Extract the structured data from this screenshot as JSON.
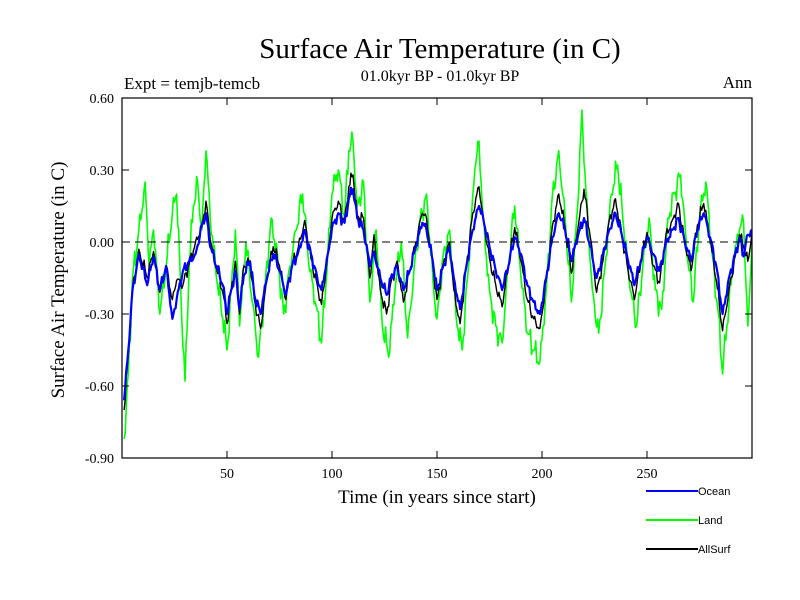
{
  "chart_data": {
    "type": "line",
    "title": "Surface Air Temperature (in C)",
    "subtitle": "01.0kyr BP - 01.0kyr BP",
    "left_label": "Expt = temjb-temcb",
    "right_label": "Ann",
    "xlabel": "Time (in years since start)",
    "ylabel": "Surface Air Temperature (in C)",
    "xlim": [
      0,
      300
    ],
    "ylim": [
      -0.9,
      0.6
    ],
    "x_ticks": [
      50,
      100,
      150,
      200,
      250
    ],
    "y_ticks": [
      -0.9,
      -0.6,
      -0.3,
      0.0,
      0.3,
      0.6
    ],
    "y_tick_labels": [
      "-0.90",
      "-0.60",
      "-0.30",
      "0.00",
      "0.30",
      "0.60"
    ],
    "zero_line": true,
    "legend_position": "below-right",
    "series": [
      {
        "name": "Ocean",
        "color": "#0000ff"
      },
      {
        "name": "Land",
        "color": "#00ff00"
      },
      {
        "name": "AllSurf",
        "color": "#000000"
      }
    ],
    "keypoints": {
      "Ocean": [
        [
          1,
          -0.66
        ],
        [
          3,
          -0.45
        ],
        [
          5,
          -0.2
        ],
        [
          8,
          -0.05
        ],
        [
          12,
          -0.18
        ],
        [
          15,
          -0.06
        ],
        [
          18,
          -0.2
        ],
        [
          21,
          -0.1
        ],
        [
          24,
          -0.32
        ],
        [
          26,
          -0.24
        ],
        [
          29,
          -0.12
        ],
        [
          32,
          -0.08
        ],
        [
          35,
          -0.05
        ],
        [
          38,
          0.07
        ],
        [
          40,
          0.12
        ],
        [
          42,
          -0.02
        ],
        [
          45,
          -0.1
        ],
        [
          48,
          -0.18
        ],
        [
          50,
          -0.3
        ],
        [
          52,
          -0.2
        ],
        [
          54,
          -0.12
        ],
        [
          56,
          -0.28
        ],
        [
          58,
          -0.14
        ],
        [
          61,
          -0.08
        ],
        [
          63,
          -0.22
        ],
        [
          66,
          -0.3
        ],
        [
          69,
          -0.15
        ],
        [
          72,
          -0.05
        ],
        [
          75,
          -0.12
        ],
        [
          78,
          -0.22
        ],
        [
          81,
          -0.1
        ],
        [
          84,
          -0.04
        ],
        [
          87,
          0.05
        ],
        [
          90,
          -0.05
        ],
        [
          93,
          -0.15
        ],
        [
          95,
          -0.2
        ],
        [
          98,
          -0.05
        ],
        [
          100,
          0.06
        ],
        [
          103,
          0.12
        ],
        [
          106,
          0.08
        ],
        [
          108,
          0.18
        ],
        [
          110,
          0.22
        ],
        [
          112,
          0.1
        ],
        [
          115,
          0.05
        ],
        [
          118,
          -0.1
        ],
        [
          120,
          -0.04
        ],
        [
          123,
          -0.15
        ],
        [
          126,
          -0.22
        ],
        [
          128,
          -0.15
        ],
        [
          131,
          -0.1
        ],
        [
          134,
          -0.2
        ],
        [
          137,
          -0.12
        ],
        [
          140,
          -0.02
        ],
        [
          143,
          0.08
        ],
        [
          145,
          0.05
        ],
        [
          148,
          -0.08
        ],
        [
          150,
          -0.2
        ],
        [
          153,
          -0.1
        ],
        [
          156,
          -0.02
        ],
        [
          158,
          -0.15
        ],
        [
          161,
          -0.28
        ],
        [
          164,
          -0.1
        ],
        [
          167,
          0.05
        ],
        [
          170,
          0.15
        ],
        [
          172,
          0.1
        ],
        [
          175,
          -0.02
        ],
        [
          178,
          -0.12
        ],
        [
          181,
          -0.2
        ],
        [
          184,
          -0.1
        ],
        [
          187,
          0.02
        ],
        [
          190,
          -0.05
        ],
        [
          193,
          -0.18
        ],
        [
          196,
          -0.25
        ],
        [
          199,
          -0.3
        ],
        [
          202,
          -0.15
        ],
        [
          205,
          0.02
        ],
        [
          208,
          0.12
        ],
        [
          211,
          0.05
        ],
        [
          214,
          -0.08
        ],
        [
          217,
          0.02
        ],
        [
          220,
          0.1
        ],
        [
          223,
          -0.02
        ],
        [
          226,
          -0.15
        ],
        [
          229,
          -0.05
        ],
        [
          232,
          0.05
        ],
        [
          235,
          0.12
        ],
        [
          238,
          0.03
        ],
        [
          241,
          -0.08
        ],
        [
          244,
          -0.18
        ],
        [
          247,
          -0.08
        ],
        [
          250,
          0.02
        ],
        [
          253,
          -0.05
        ],
        [
          256,
          -0.12
        ],
        [
          259,
          0.0
        ],
        [
          262,
          0.05
        ],
        [
          265,
          0.1
        ],
        [
          268,
          0.0
        ],
        [
          271,
          -0.08
        ],
        [
          274,
          0.05
        ],
        [
          277,
          0.12
        ],
        [
          280,
          0.02
        ],
        [
          283,
          -0.1
        ],
        [
          286,
          -0.3
        ],
        [
          289,
          -0.15
        ],
        [
          292,
          -0.05
        ],
        [
          294,
          0.02
        ],
        [
          296,
          -0.06
        ],
        [
          298,
          0.03
        ],
        [
          300,
          0.05
        ]
      ],
      "Land": [
        [
          1,
          -0.82
        ],
        [
          3,
          -0.55
        ],
        [
          5,
          -0.15
        ],
        [
          8,
          0.05
        ],
        [
          11,
          0.25
        ],
        [
          13,
          -0.1
        ],
        [
          15,
          0.05
        ],
        [
          18,
          -0.3
        ],
        [
          21,
          -0.1
        ],
        [
          24,
          0.12
        ],
        [
          26,
          0.2
        ],
        [
          28,
          -0.2
        ],
        [
          30,
          -0.58
        ],
        [
          32,
          -0.1
        ],
        [
          34,
          0.15
        ],
        [
          36,
          0.25
        ],
        [
          38,
          0.05
        ],
        [
          40,
          0.38
        ],
        [
          42,
          0.1
        ],
        [
          45,
          -0.15
        ],
        [
          48,
          -0.32
        ],
        [
          50,
          -0.45
        ],
        [
          52,
          -0.2
        ],
        [
          54,
          0.05
        ],
        [
          56,
          -0.35
        ],
        [
          59,
          0.0
        ],
        [
          62,
          -0.25
        ],
        [
          65,
          -0.48
        ],
        [
          68,
          -0.2
        ],
        [
          71,
          0.1
        ],
        [
          74,
          -0.05
        ],
        [
          77,
          -0.3
        ],
        [
          80,
          -0.1
        ],
        [
          83,
          0.05
        ],
        [
          86,
          0.2
        ],
        [
          89,
          -0.1
        ],
        [
          92,
          -0.25
        ],
        [
          95,
          -0.42
        ],
        [
          98,
          -0.05
        ],
        [
          100,
          0.2
        ],
        [
          103,
          0.3
        ],
        [
          106,
          0.1
        ],
        [
          108,
          0.38
        ],
        [
          110,
          0.42
        ],
        [
          112,
          0.15
        ],
        [
          115,
          0.25
        ],
        [
          118,
          -0.25
        ],
        [
          121,
          0.05
        ],
        [
          124,
          -0.35
        ],
        [
          127,
          -0.48
        ],
        [
          130,
          -0.2
        ],
        [
          133,
          0.0
        ],
        [
          136,
          -0.4
        ],
        [
          139,
          -0.12
        ],
        [
          142,
          0.1
        ],
        [
          145,
          0.2
        ],
        [
          148,
          -0.15
        ],
        [
          150,
          -0.32
        ],
        [
          153,
          -0.05
        ],
        [
          156,
          0.05
        ],
        [
          159,
          -0.3
        ],
        [
          162,
          -0.45
        ],
        [
          165,
          -0.1
        ],
        [
          168,
          0.3
        ],
        [
          170,
          0.42
        ],
        [
          172,
          0.1
        ],
        [
          175,
          -0.2
        ],
        [
          178,
          -0.35
        ],
        [
          181,
          -0.42
        ],
        [
          184,
          -0.1
        ],
        [
          187,
          0.15
        ],
        [
          190,
          -0.15
        ],
        [
          193,
          -0.38
        ],
        [
          196,
          -0.45
        ],
        [
          199,
          -0.5
        ],
        [
          202,
          -0.2
        ],
        [
          205,
          0.2
        ],
        [
          208,
          0.38
        ],
        [
          211,
          0.1
        ],
        [
          214,
          -0.25
        ],
        [
          217,
          0.15
        ],
        [
          219,
          0.55
        ],
        [
          221,
          0.2
        ],
        [
          224,
          -0.2
        ],
        [
          227,
          -0.38
        ],
        [
          230,
          -0.1
        ],
        [
          233,
          0.2
        ],
        [
          236,
          0.32
        ],
        [
          239,
          0.05
        ],
        [
          242,
          -0.2
        ],
        [
          245,
          -0.35
        ],
        [
          248,
          -0.1
        ],
        [
          251,
          0.1
        ],
        [
          254,
          -0.2
        ],
        [
          257,
          -0.28
        ],
        [
          260,
          0.1
        ],
        [
          263,
          0.2
        ],
        [
          266,
          0.28
        ],
        [
          269,
          -0.05
        ],
        [
          272,
          -0.25
        ],
        [
          275,
          0.1
        ],
        [
          278,
          0.25
        ],
        [
          281,
          -0.05
        ],
        [
          284,
          -0.3
        ],
        [
          286,
          -0.55
        ],
        [
          288,
          -0.35
        ],
        [
          291,
          -0.1
        ],
        [
          294,
          0.05
        ],
        [
          296,
          0.08
        ],
        [
          298,
          -0.35
        ],
        [
          300,
          0.0
        ]
      ],
      "AllSurf": [
        [
          1,
          -0.7
        ],
        [
          3,
          -0.47
        ],
        [
          5,
          -0.19
        ],
        [
          8,
          -0.03
        ],
        [
          12,
          -0.15
        ],
        [
          15,
          -0.04
        ],
        [
          18,
          -0.21
        ],
        [
          21,
          -0.1
        ],
        [
          24,
          -0.24
        ],
        [
          26,
          -0.16
        ],
        [
          29,
          -0.18
        ],
        [
          32,
          -0.09
        ],
        [
          35,
          0.0
        ],
        [
          38,
          0.06
        ],
        [
          40,
          0.17
        ],
        [
          42,
          0.01
        ],
        [
          45,
          -0.11
        ],
        [
          48,
          -0.21
        ],
        [
          50,
          -0.34
        ],
        [
          52,
          -0.2
        ],
        [
          54,
          -0.08
        ],
        [
          56,
          -0.3
        ],
        [
          58,
          -0.1
        ],
        [
          61,
          -0.09
        ],
        [
          63,
          -0.24
        ],
        [
          66,
          -0.36
        ],
        [
          69,
          -0.16
        ],
        [
          72,
          -0.02
        ],
        [
          75,
          -0.1
        ],
        [
          78,
          -0.24
        ],
        [
          81,
          -0.1
        ],
        [
          84,
          -0.02
        ],
        [
          87,
          0.09
        ],
        [
          90,
          -0.07
        ],
        [
          93,
          -0.18
        ],
        [
          95,
          -0.26
        ],
        [
          98,
          -0.05
        ],
        [
          100,
          0.1
        ],
        [
          103,
          0.17
        ],
        [
          106,
          0.08
        ],
        [
          108,
          0.23
        ],
        [
          110,
          0.28
        ],
        [
          112,
          0.11
        ],
        [
          115,
          0.1
        ],
        [
          118,
          -0.15
        ],
        [
          120,
          0.03
        ],
        [
          123,
          -0.2
        ],
        [
          126,
          -0.3
        ],
        [
          128,
          -0.17
        ],
        [
          131,
          -0.08
        ],
        [
          134,
          -0.25
        ],
        [
          137,
          -0.12
        ],
        [
          140,
          0.0
        ],
        [
          143,
          0.12
        ],
        [
          145,
          0.1
        ],
        [
          148,
          -0.1
        ],
        [
          150,
          -0.24
        ],
        [
          153,
          -0.09
        ],
        [
          156,
          0.0
        ],
        [
          158,
          -0.2
        ],
        [
          161,
          -0.34
        ],
        [
          164,
          -0.1
        ],
        [
          167,
          0.12
        ],
        [
          170,
          0.23
        ],
        [
          172,
          0.1
        ],
        [
          175,
          -0.07
        ],
        [
          178,
          -0.18
        ],
        [
          181,
          -0.27
        ],
        [
          184,
          -0.1
        ],
        [
          187,
          0.06
        ],
        [
          190,
          -0.08
        ],
        [
          193,
          -0.24
        ],
        [
          196,
          -0.32
        ],
        [
          199,
          -0.36
        ],
        [
          202,
          -0.16
        ],
        [
          205,
          0.07
        ],
        [
          208,
          0.2
        ],
        [
          211,
          0.06
        ],
        [
          214,
          -0.13
        ],
        [
          217,
          0.05
        ],
        [
          220,
          0.22
        ],
        [
          223,
          0.02
        ],
        [
          226,
          -0.21
        ],
        [
          229,
          -0.08
        ],
        [
          232,
          0.09
        ],
        [
          235,
          0.18
        ],
        [
          238,
          0.03
        ],
        [
          241,
          -0.12
        ],
        [
          244,
          -0.24
        ],
        [
          247,
          -0.09
        ],
        [
          250,
          0.04
        ],
        [
          253,
          -0.1
        ],
        [
          256,
          -0.17
        ],
        [
          259,
          0.03
        ],
        [
          262,
          0.09
        ],
        [
          265,
          0.16
        ],
        [
          268,
          0.0
        ],
        [
          271,
          -0.12
        ],
        [
          274,
          0.07
        ],
        [
          277,
          0.16
        ],
        [
          280,
          0.01
        ],
        [
          283,
          -0.16
        ],
        [
          286,
          -0.37
        ],
        [
          289,
          -0.2
        ],
        [
          292,
          -0.06
        ],
        [
          294,
          0.03
        ],
        [
          296,
          -0.02
        ],
        [
          298,
          -0.08
        ],
        [
          300,
          0.04
        ]
      ]
    }
  }
}
